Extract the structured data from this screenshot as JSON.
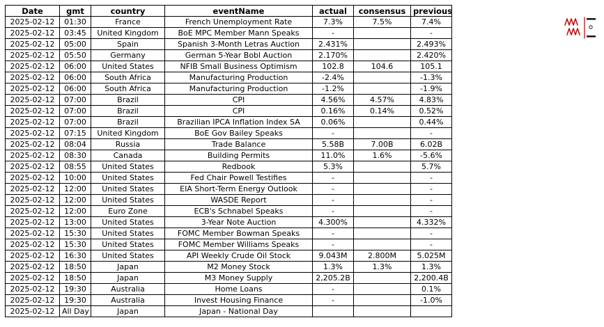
{
  "chart_data": {
    "type": "table",
    "title": "",
    "columns": [
      "Date",
      "gmt",
      "country",
      "eventName",
      "actual",
      "consensus",
      "previous"
    ],
    "rows": [
      [
        "2025-02-12",
        "01:30",
        "France",
        "French Unemployment Rate",
        "7.3%",
        "7.5%",
        "7.4%"
      ],
      [
        "2025-02-12",
        "03:45",
        "United Kingdom",
        "BoE MPC Member Mann Speaks",
        "-",
        "",
        "-"
      ],
      [
        "2025-02-12",
        "05:00",
        "Spain",
        "Spanish 3-Month Letras Auction",
        "2.431%",
        "",
        "2.493%"
      ],
      [
        "2025-02-12",
        "05:50",
        "Germany",
        "German 5-Year Bobl Auction",
        "2.170%",
        "",
        "2.420%"
      ],
      [
        "2025-02-12",
        "06:00",
        "United States",
        "NFIB Small Business Optimism",
        "102.8",
        "104.6",
        "105.1"
      ],
      [
        "2025-02-12",
        "06:00",
        "South Africa",
        "Manufacturing Production",
        "-2.4%",
        "",
        "-1.3%"
      ],
      [
        "2025-02-12",
        "06:00",
        "South Africa",
        "Manufacturing Production",
        "-1.2%",
        "",
        "-1.9%"
      ],
      [
        "2025-02-12",
        "07:00",
        "Brazil",
        "CPI",
        "4.56%",
        "4.57%",
        "4.83%"
      ],
      [
        "2025-02-12",
        "07:00",
        "Brazil",
        "CPI",
        "0.16%",
        "0.14%",
        "0.52%"
      ],
      [
        "2025-02-12",
        "07:00",
        "Brazil",
        "Brazilian IPCA Inflation Index SA",
        "0.06%",
        "",
        "0.44%"
      ],
      [
        "2025-02-12",
        "07:15",
        "United Kingdom",
        "BoE Gov Bailey Speaks",
        "-",
        "",
        "-"
      ],
      [
        "2025-02-12",
        "08:04",
        "Russia",
        "Trade Balance",
        "5.58B",
        "7.00B",
        "6.02B"
      ],
      [
        "2025-02-12",
        "08:30",
        "Canada",
        "Building Permits",
        "11.0%",
        "1.6%",
        "-5.6%"
      ],
      [
        "2025-02-12",
        "08:55",
        "United States",
        "Redbook",
        "5.3%",
        "",
        "5.7%"
      ],
      [
        "2025-02-12",
        "10:00",
        "United States",
        "Fed Chair Powell Testifies",
        "-",
        "",
        "-"
      ],
      [
        "2025-02-12",
        "12:00",
        "United States",
        "EIA Short-Term Energy Outlook",
        "-",
        "",
        "-"
      ],
      [
        "2025-02-12",
        "12:00",
        "United States",
        "WASDE Report",
        "-",
        "",
        "-"
      ],
      [
        "2025-02-12",
        "12:00",
        "Euro Zone",
        "ECB's Schnabel Speaks",
        "-",
        "",
        "-"
      ],
      [
        "2025-02-12",
        "13:00",
        "United States",
        "3-Year Note Auction",
        "4.300%",
        "",
        "4.332%"
      ],
      [
        "2025-02-12",
        "15:30",
        "United States",
        "FOMC Member Bowman Speaks",
        "-",
        "",
        "-"
      ],
      [
        "2025-02-12",
        "15:30",
        "United States",
        "FOMC Member Williams Speaks",
        "-",
        "",
        "-"
      ],
      [
        "2025-02-12",
        "16:30",
        "United States",
        "API Weekly Crude Oil Stock",
        "9.043M",
        "2.800M",
        "5.025M"
      ],
      [
        "2025-02-12",
        "18:50",
        "Japan",
        "M2 Money Stock",
        "1.3%",
        "1.3%",
        "1.3%"
      ],
      [
        "2025-02-12",
        "18:50",
        "Japan",
        "M3 Money Supply",
        "2,205.2B",
        "",
        "2,200.4B"
      ],
      [
        "2025-02-12",
        "19:30",
        "Australia",
        "Home Loans",
        "-",
        "",
        "0.1%"
      ],
      [
        "2025-02-12",
        "19:30",
        "Australia",
        "Invest Housing Finance",
        "-",
        "",
        "-1.0%"
      ],
      [
        "2025-02-12",
        "All Day",
        "Japan",
        "Japan - National Day",
        "",
        "",
        ""
      ]
    ],
    "layout": {
      "grid": true,
      "border_color": "#000000",
      "header_bold": true
    }
  },
  "logo": {
    "accent_color": "#c41111"
  }
}
